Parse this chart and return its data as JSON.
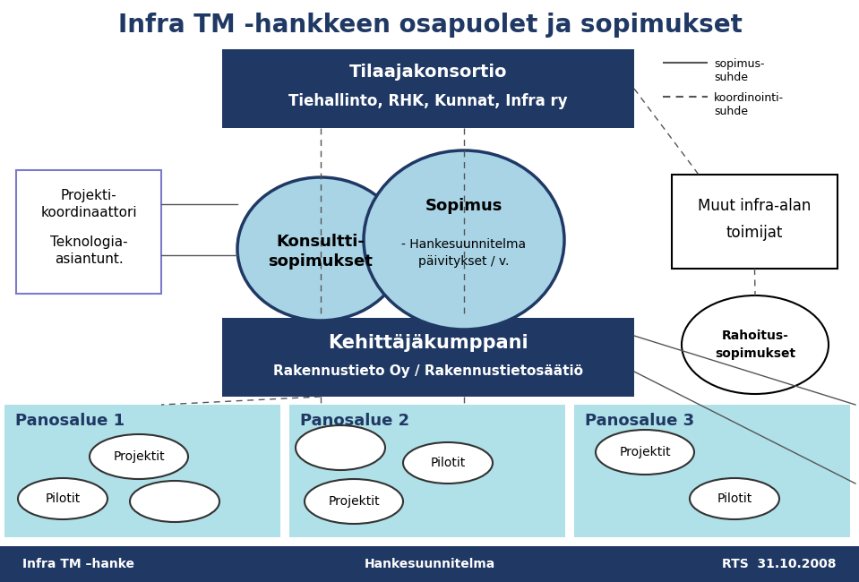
{
  "title": "Infra TM -hankkeen osapuolet ja sopimukset",
  "title_color": "#1F3864",
  "title_fontsize": 20,
  "bg_color": "#FFFFFF",
  "legend_solid_label": "sopimus-\nsuhde",
  "legend_dashed_label": "koordinointi-\nsuhde",
  "tilaajakonsortio_line1": "Tilaajakonsortio",
  "tilaajakonsortio_line2": "Tiehallinto, RHK, Kunnat, Infra ry",
  "tilaajakonsortio_bg": "#1F3864",
  "tilaajakonsortio_text_color": "#FFFFFF",
  "kehittaja_line1": "Kehittäjäkumppani",
  "kehittaja_line2": "Rakennustieto Oy / Rakennustietosäätiö",
  "kehittaja_bg": "#1F3864",
  "kehittaja_text_color": "#FFFFFF",
  "projekti_line1": "Projekti-",
  "projekti_line2": "koordinaattori",
  "projekti_line3": "Teknologia-",
  "projekti_line4": "asiantunt.",
  "projekti_border": "#7B7BCC",
  "konsultti_text1": "Konsultti-",
  "konsultti_text2": "sopimukset",
  "konsultti_fill": "#A8D4E6",
  "konsultti_edge": "#1F3864",
  "sopimus_line1": "Sopimus",
  "sopimus_line2": "- Hankesuunnitelma",
  "sopimus_line3": "päivitykset / v.",
  "sopimus_fill": "#A8D4E6",
  "sopimus_edge": "#1F3864",
  "muut_line1": "Muut infra-alan",
  "muut_line2": "toimijat",
  "muut_border": "#000000",
  "rahoitus_line1": "Rahoitus-",
  "rahoitus_line2": "sopimukset",
  "rahoitus_fill": "#FFFFFF",
  "rahoitus_edge": "#000000",
  "panosalue_bg": "#B0E0E8",
  "panosalue_labels": [
    "Panosalue 1",
    "Panosalue 2",
    "Panosalue 3"
  ],
  "ellipse_fill": "#FFFFFF",
  "ellipse_edge": "#333333",
  "footer_bg": "#1F3864",
  "footer_left": "Infra TM –hanke",
  "footer_center": "Hankesuunnitelma",
  "footer_right": "RTS  31.10.2008",
  "footer_text_color": "#FFFFFF"
}
